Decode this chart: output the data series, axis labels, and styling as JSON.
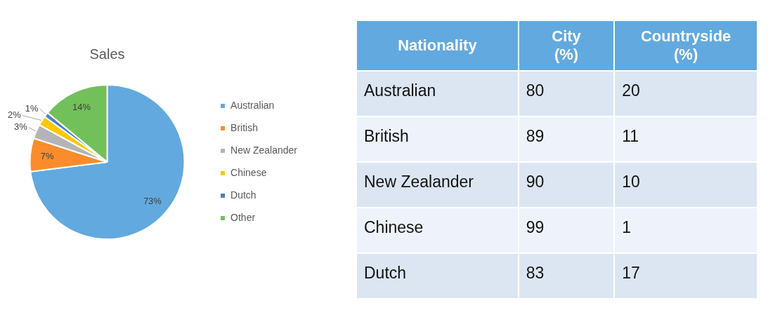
{
  "chart_data": [
    {
      "type": "pie",
      "title": "Sales",
      "categories": [
        "Australian",
        "British",
        "New Zealander",
        "Chinese",
        "Dutch",
        "Other"
      ],
      "values": [
        73,
        7,
        3,
        2,
        1,
        14
      ],
      "colors": [
        "#62a9df",
        "#fb8c2b",
        "#b4b4b4",
        "#ffc800",
        "#4a7fc8",
        "#72c05a"
      ],
      "value_labels": [
        "73%",
        "7%",
        "3%",
        "2%",
        "1%",
        "14%"
      ],
      "legend": "right"
    },
    {
      "type": "heatmap",
      "ylabel": "Nationality",
      "categories": [
        "City (%)",
        "Countryside (%)"
      ],
      "y_categories": [
        "Australian",
        "British",
        "New Zealander",
        "Chinese",
        "Dutch"
      ],
      "cells": [
        [
          80,
          20
        ],
        [
          89,
          11
        ],
        [
          90,
          10
        ],
        [
          99,
          1
        ],
        [
          83,
          17
        ]
      ],
      "data_labels": true
    }
  ]
}
